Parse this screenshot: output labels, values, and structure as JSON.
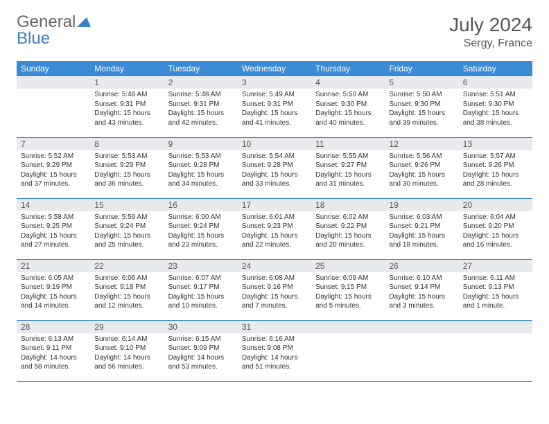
{
  "logo": {
    "line1": "General",
    "line2": "Blue"
  },
  "title": "July 2024",
  "location": "Sergy, France",
  "colors": {
    "headerBg": "#3b8bd4",
    "headerText": "#ffffff",
    "dayNumBg": "#e8eaed",
    "borderColor": "#3b8bd4",
    "bodyBg": "#ffffff",
    "textColor": "#333333",
    "logoGray": "#666666",
    "logoBlue": "#3b7fc4"
  },
  "dayHeaders": [
    "Sunday",
    "Monday",
    "Tuesday",
    "Wednesday",
    "Thursday",
    "Friday",
    "Saturday"
  ],
  "weeks": [
    [
      {
        "num": "",
        "sunrise": "",
        "sunset": "",
        "daylight": ""
      },
      {
        "num": "1",
        "sunrise": "Sunrise: 5:48 AM",
        "sunset": "Sunset: 9:31 PM",
        "daylight": "Daylight: 15 hours and 43 minutes."
      },
      {
        "num": "2",
        "sunrise": "Sunrise: 5:48 AM",
        "sunset": "Sunset: 9:31 PM",
        "daylight": "Daylight: 15 hours and 42 minutes."
      },
      {
        "num": "3",
        "sunrise": "Sunrise: 5:49 AM",
        "sunset": "Sunset: 9:31 PM",
        "daylight": "Daylight: 15 hours and 41 minutes."
      },
      {
        "num": "4",
        "sunrise": "Sunrise: 5:50 AM",
        "sunset": "Sunset: 9:30 PM",
        "daylight": "Daylight: 15 hours and 40 minutes."
      },
      {
        "num": "5",
        "sunrise": "Sunrise: 5:50 AM",
        "sunset": "Sunset: 9:30 PM",
        "daylight": "Daylight: 15 hours and 39 minutes."
      },
      {
        "num": "6",
        "sunrise": "Sunrise: 5:51 AM",
        "sunset": "Sunset: 9:30 PM",
        "daylight": "Daylight: 15 hours and 38 minutes."
      }
    ],
    [
      {
        "num": "7",
        "sunrise": "Sunrise: 5:52 AM",
        "sunset": "Sunset: 9:29 PM",
        "daylight": "Daylight: 15 hours and 37 minutes."
      },
      {
        "num": "8",
        "sunrise": "Sunrise: 5:53 AM",
        "sunset": "Sunset: 9:29 PM",
        "daylight": "Daylight: 15 hours and 36 minutes."
      },
      {
        "num": "9",
        "sunrise": "Sunrise: 5:53 AM",
        "sunset": "Sunset: 9:28 PM",
        "daylight": "Daylight: 15 hours and 34 minutes."
      },
      {
        "num": "10",
        "sunrise": "Sunrise: 5:54 AM",
        "sunset": "Sunset: 9:28 PM",
        "daylight": "Daylight: 15 hours and 33 minutes."
      },
      {
        "num": "11",
        "sunrise": "Sunrise: 5:55 AM",
        "sunset": "Sunset: 9:27 PM",
        "daylight": "Daylight: 15 hours and 31 minutes."
      },
      {
        "num": "12",
        "sunrise": "Sunrise: 5:56 AM",
        "sunset": "Sunset: 9:26 PM",
        "daylight": "Daylight: 15 hours and 30 minutes."
      },
      {
        "num": "13",
        "sunrise": "Sunrise: 5:57 AM",
        "sunset": "Sunset: 9:26 PM",
        "daylight": "Daylight: 15 hours and 28 minutes."
      }
    ],
    [
      {
        "num": "14",
        "sunrise": "Sunrise: 5:58 AM",
        "sunset": "Sunset: 9:25 PM",
        "daylight": "Daylight: 15 hours and 27 minutes."
      },
      {
        "num": "15",
        "sunrise": "Sunrise: 5:59 AM",
        "sunset": "Sunset: 9:24 PM",
        "daylight": "Daylight: 15 hours and 25 minutes."
      },
      {
        "num": "16",
        "sunrise": "Sunrise: 6:00 AM",
        "sunset": "Sunset: 9:24 PM",
        "daylight": "Daylight: 15 hours and 23 minutes."
      },
      {
        "num": "17",
        "sunrise": "Sunrise: 6:01 AM",
        "sunset": "Sunset: 9:23 PM",
        "daylight": "Daylight: 15 hours and 22 minutes."
      },
      {
        "num": "18",
        "sunrise": "Sunrise: 6:02 AM",
        "sunset": "Sunset: 9:22 PM",
        "daylight": "Daylight: 15 hours and 20 minutes."
      },
      {
        "num": "19",
        "sunrise": "Sunrise: 6:03 AM",
        "sunset": "Sunset: 9:21 PM",
        "daylight": "Daylight: 15 hours and 18 minutes."
      },
      {
        "num": "20",
        "sunrise": "Sunrise: 6:04 AM",
        "sunset": "Sunset: 9:20 PM",
        "daylight": "Daylight: 15 hours and 16 minutes."
      }
    ],
    [
      {
        "num": "21",
        "sunrise": "Sunrise: 6:05 AM",
        "sunset": "Sunset: 9:19 PM",
        "daylight": "Daylight: 15 hours and 14 minutes."
      },
      {
        "num": "22",
        "sunrise": "Sunrise: 6:06 AM",
        "sunset": "Sunset: 9:18 PM",
        "daylight": "Daylight: 15 hours and 12 minutes."
      },
      {
        "num": "23",
        "sunrise": "Sunrise: 6:07 AM",
        "sunset": "Sunset: 9:17 PM",
        "daylight": "Daylight: 15 hours and 10 minutes."
      },
      {
        "num": "24",
        "sunrise": "Sunrise: 6:08 AM",
        "sunset": "Sunset: 9:16 PM",
        "daylight": "Daylight: 15 hours and 7 minutes."
      },
      {
        "num": "25",
        "sunrise": "Sunrise: 6:09 AM",
        "sunset": "Sunset: 9:15 PM",
        "daylight": "Daylight: 15 hours and 5 minutes."
      },
      {
        "num": "26",
        "sunrise": "Sunrise: 6:10 AM",
        "sunset": "Sunset: 9:14 PM",
        "daylight": "Daylight: 15 hours and 3 minutes."
      },
      {
        "num": "27",
        "sunrise": "Sunrise: 6:11 AM",
        "sunset": "Sunset: 9:13 PM",
        "daylight": "Daylight: 15 hours and 1 minute."
      }
    ],
    [
      {
        "num": "28",
        "sunrise": "Sunrise: 6:13 AM",
        "sunset": "Sunset: 9:11 PM",
        "daylight": "Daylight: 14 hours and 58 minutes."
      },
      {
        "num": "29",
        "sunrise": "Sunrise: 6:14 AM",
        "sunset": "Sunset: 9:10 PM",
        "daylight": "Daylight: 14 hours and 56 minutes."
      },
      {
        "num": "30",
        "sunrise": "Sunrise: 6:15 AM",
        "sunset": "Sunset: 9:09 PM",
        "daylight": "Daylight: 14 hours and 53 minutes."
      },
      {
        "num": "31",
        "sunrise": "Sunrise: 6:16 AM",
        "sunset": "Sunset: 9:08 PM",
        "daylight": "Daylight: 14 hours and 51 minutes."
      },
      {
        "num": "",
        "sunrise": "",
        "sunset": "",
        "daylight": ""
      },
      {
        "num": "",
        "sunrise": "",
        "sunset": "",
        "daylight": ""
      },
      {
        "num": "",
        "sunrise": "",
        "sunset": "",
        "daylight": ""
      }
    ]
  ]
}
